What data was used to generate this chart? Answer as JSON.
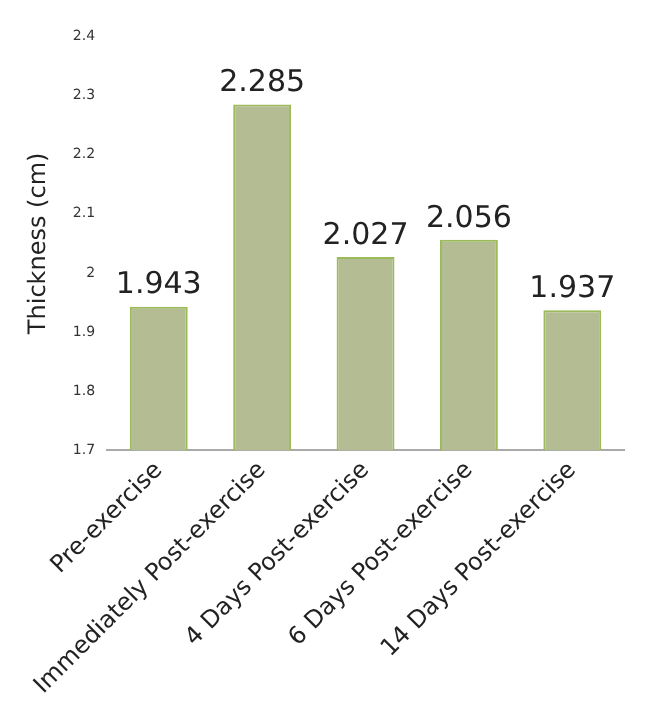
{
  "chart_data": {
    "type": "bar",
    "ylabel": "Thickness (cm)",
    "categories": [
      "Pre-exercise",
      "Immediately Post-exercise",
      "4 Days Post-exercise",
      "6 Days Post-exercise",
      "14 Days Post-exercise"
    ],
    "values": [
      1.943,
      2.285,
      2.027,
      2.056,
      1.937
    ],
    "color": "#b4bc94",
    "ylim": [
      1.7,
      2.4
    ],
    "yticks": [
      1.7,
      1.8,
      1.9,
      2,
      2.1,
      2.2,
      2.3,
      2.4
    ],
    "data_labels": true,
    "grid": false,
    "legend": false
  }
}
